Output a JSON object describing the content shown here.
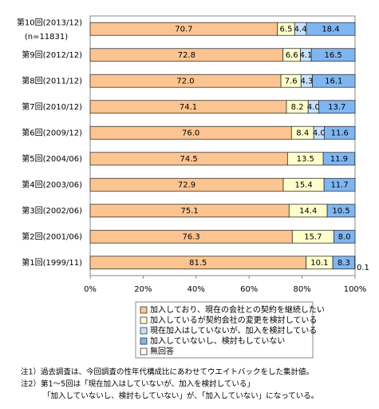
{
  "chart_data": {
    "type": "stacked-bar-horizontal",
    "categories": [
      "第10回(2013/12)",
      "第9回(2012/12)",
      "第8回(2011/12)",
      "第7回(2010/12)",
      "第6回(2009/12)",
      "第5回(2004/06)",
      "第4回(2003/06)",
      "第3回(2002/06)",
      "第2回(2001/06)",
      "第1回(1999/11)"
    ],
    "sample_size_label": "(n=11831)",
    "series": [
      {
        "name": "加入しており、現在の会社との契約を継続したい",
        "color": "#fcc490",
        "values": [
          70.7,
          72.8,
          72.0,
          74.1,
          76.0,
          74.5,
          72.9,
          75.1,
          76.3,
          81.5
        ],
        "value_labels": [
          "70.7",
          "72.8",
          "72.0",
          "74.1",
          "76.0",
          "74.5",
          "72.9",
          "75.1",
          "76.3",
          "81.5"
        ]
      },
      {
        "name": "加入しているが契約会社の変更を検討している",
        "color": "#ffffcc",
        "values": [
          6.5,
          6.6,
          7.6,
          8.2,
          8.4,
          13.5,
          15.4,
          14.4,
          15.7,
          10.1
        ],
        "value_labels": [
          "6.5",
          "6.6",
          "7.6",
          "8.2",
          "8.4",
          "13.5",
          "15.4",
          "14.4",
          "15.7",
          "10.1"
        ]
      },
      {
        "name": "現在加入はしていないが、加入を検討している",
        "color": "#c6e2ff",
        "values": [
          4.4,
          4.1,
          4.3,
          4.0,
          4.0,
          null,
          null,
          null,
          null,
          null
        ],
        "value_labels": [
          "4.4",
          "4.1",
          "4.3",
          "4.0",
          "4.0",
          null,
          null,
          null,
          null,
          null
        ]
      },
      {
        "name": "加入していないし、検討もしていない",
        "color": "#7fb6f2",
        "values": [
          18.4,
          16.5,
          16.1,
          13.7,
          11.6,
          11.9,
          11.7,
          10.5,
          8.0,
          8.3
        ],
        "value_labels": [
          "18.4",
          "16.5",
          "16.1",
          "13.7",
          "11.6",
          "11.9",
          "11.7",
          "10.5",
          "8.0",
          "8.3"
        ]
      },
      {
        "name": "無回答",
        "color": "#ffffff",
        "values": [
          null,
          null,
          null,
          null,
          null,
          null,
          null,
          null,
          null,
          0.1
        ],
        "value_labels": [
          null,
          null,
          null,
          null,
          null,
          null,
          null,
          null,
          null,
          "0.1"
        ]
      }
    ],
    "xlim": [
      0,
      100
    ],
    "xticks": [
      {
        "value": 0,
        "label": "0%"
      },
      {
        "value": 20,
        "label": "20%"
      },
      {
        "value": 40,
        "label": "40%"
      },
      {
        "value": 60,
        "label": "60%"
      },
      {
        "value": 80,
        "label": "80%"
      },
      {
        "value": 100,
        "label": "100%"
      }
    ],
    "notes": [
      "注1）過去調査は、今回調査の性年代構成比にあわせてウエイトバックをした集計値。",
      "注2）第1～5回は「現在加入はしていないが、加入を検討している」",
      "「加入していないし、検討もしていない」が、「加入していない」になっている。"
    ]
  }
}
